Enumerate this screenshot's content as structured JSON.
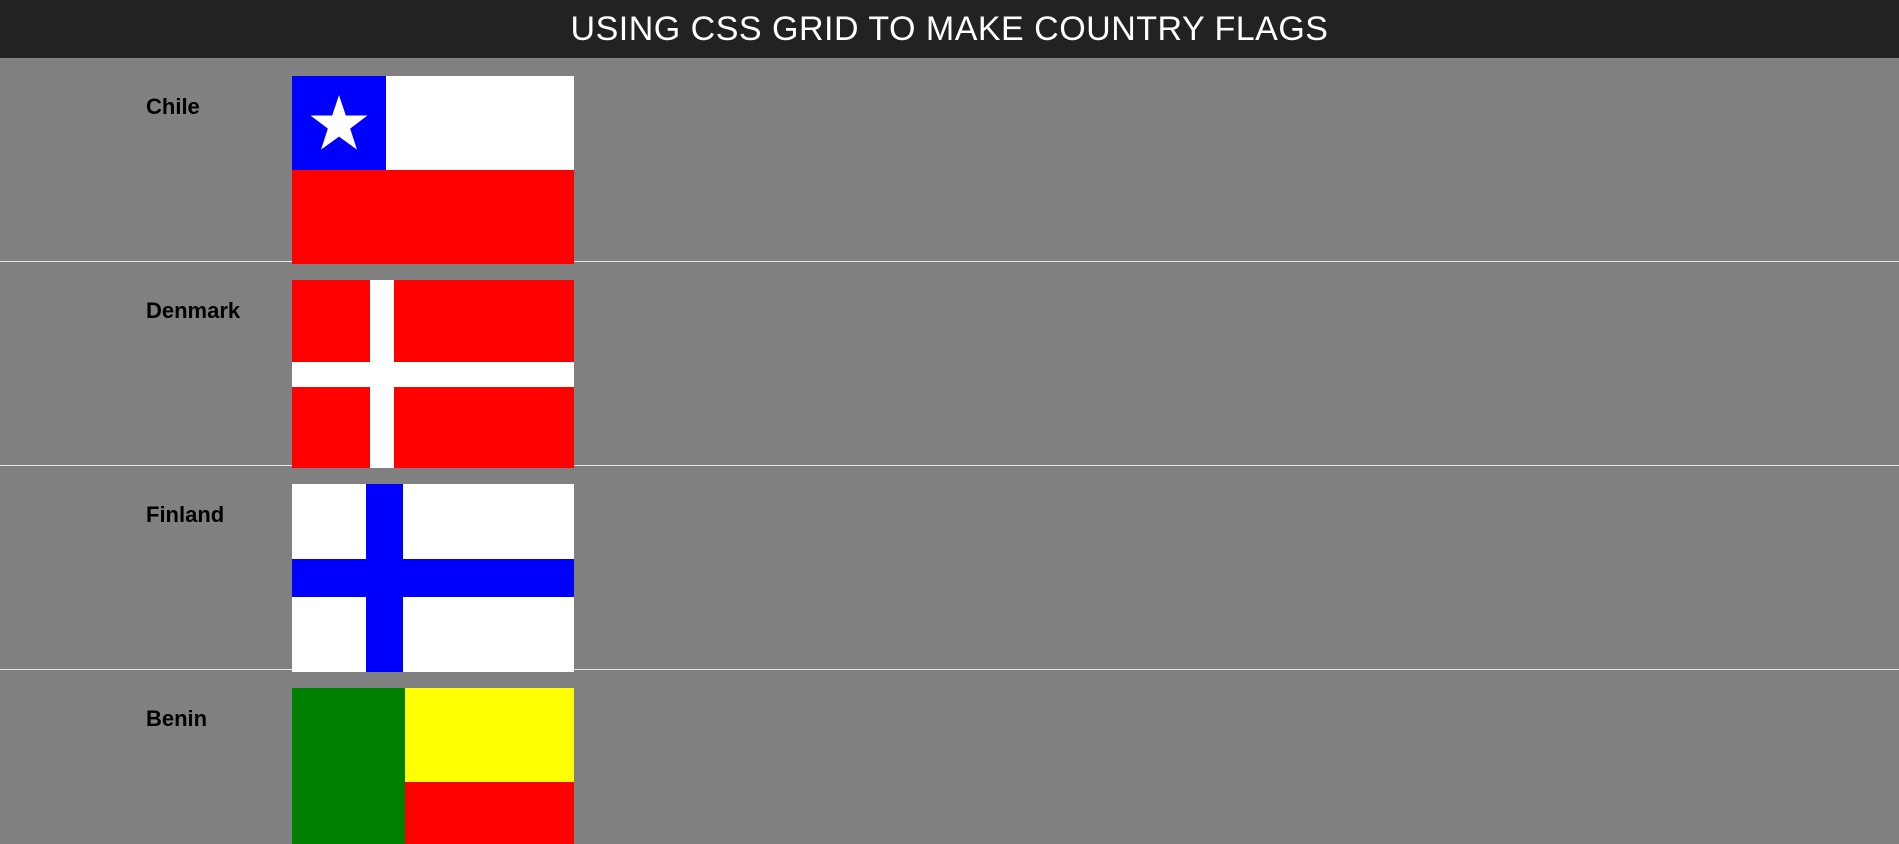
{
  "header": {
    "title": "USING CSS GRID TO MAKE COUNTRY FLAGS"
  },
  "countries": [
    {
      "name": "Chile",
      "colors": [
        "#0000ff",
        "#ffffff",
        "#ff0000"
      ],
      "icon": "star-icon"
    },
    {
      "name": "Denmark",
      "colors": [
        "#ff0000",
        "#ffffff"
      ]
    },
    {
      "name": "Finland",
      "colors": [
        "#ffffff",
        "#0000ff"
      ]
    },
    {
      "name": "Benin",
      "colors": [
        "#008000",
        "#ffff00",
        "#ff0000"
      ]
    }
  ],
  "theme": {
    "header_bg": "#222222",
    "page_bg": "#808080",
    "divider": "#e6e6e6"
  }
}
